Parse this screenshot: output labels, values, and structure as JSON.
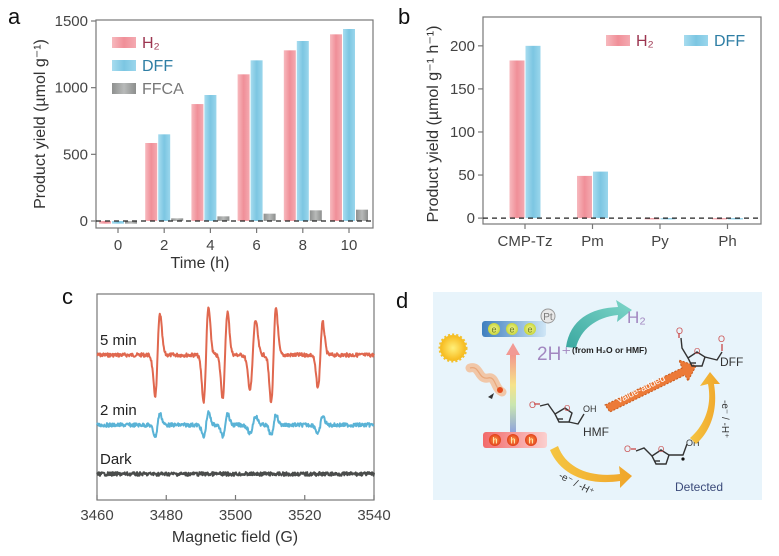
{
  "figure": {
    "panels": [
      "a",
      "b",
      "c",
      "d"
    ],
    "colors": {
      "h2": "#f2a0a8",
      "dff": "#8fd0e8",
      "ffca": "#a2a4a3",
      "trace_5min": "#e0684f",
      "trace_2min": "#5ab3d6",
      "trace_dark": "#4a4c4b",
      "scheme_bg": "#e8f4fb"
    }
  },
  "chart_data": [
    {
      "panel": "a",
      "type": "bar",
      "title": "",
      "xlabel": "Time (h)",
      "ylabel": "Product yield (µmol g⁻¹)",
      "categories": [
        "0",
        "2",
        "4",
        "6",
        "8",
        "10"
      ],
      "ylim": [
        -60,
        1500
      ],
      "yticks": [
        0,
        500,
        1000,
        1500
      ],
      "legend_position": "top-left",
      "reference_line": {
        "y": 0,
        "style": "dashed"
      },
      "series": [
        {
          "name": "H₂",
          "key": "h2",
          "values": [
            -20,
            585,
            877,
            1100,
            1280,
            1400
          ]
        },
        {
          "name": "DFF",
          "key": "dff",
          "values": [
            -20,
            650,
            945,
            1205,
            1350,
            1440
          ]
        },
        {
          "name": "FFCA",
          "key": "ffca",
          "values": [
            -20,
            20,
            35,
            55,
            80,
            85
          ]
        }
      ]
    },
    {
      "panel": "b",
      "type": "bar",
      "title": "",
      "xlabel": "",
      "ylabel": "Product yield (µmol g⁻¹ h⁻¹)",
      "categories": [
        "CMP-Tz",
        "Pm",
        "Py",
        "Ph"
      ],
      "ylim": [
        -8,
        230
      ],
      "yticks": [
        0,
        50,
        100,
        150,
        200
      ],
      "legend_position": "top-right",
      "reference_line": {
        "y": 0,
        "style": "dashed"
      },
      "series": [
        {
          "name": "H₂",
          "key": "h2",
          "values": [
            183,
            49,
            -1.5,
            -1.5
          ]
        },
        {
          "name": "DFF",
          "key": "dff",
          "values": [
            200,
            54,
            -1.5,
            -1.5
          ]
        }
      ]
    },
    {
      "panel": "c",
      "type": "line",
      "title": "",
      "xlabel": "Magnetic field (G)",
      "ylabel": "",
      "xlim": [
        3460,
        3540
      ],
      "xticks": [
        3460,
        3480,
        3500,
        3520,
        3540
      ],
      "yticks": [],
      "series": [
        {
          "name": "5 min",
          "key": "trace_5min",
          "offset": 3,
          "lines": [
            {
              "center": 3477.5,
              "amp": 1.0,
              "width": 0.7
            },
            {
              "center": 3491.5,
              "amp": 1.15,
              "width": 0.7
            },
            {
              "center": 3497.0,
              "amp": 1.05,
              "width": 0.7
            },
            {
              "center": 3505.0,
              "amp": 0.85,
              "width": 0.8
            },
            {
              "center": 3511.0,
              "amp": 1.15,
              "width": 0.7
            },
            {
              "center": 3524.5,
              "amp": 0.8,
              "width": 0.7
            }
          ]
        },
        {
          "name": "2 min",
          "key": "trace_2min",
          "offset": 1.6,
          "lines": [
            {
              "center": 3477.5,
              "amp": 0.28,
              "width": 0.7
            },
            {
              "center": 3491.5,
              "amp": 0.3,
              "width": 0.7
            },
            {
              "center": 3497.0,
              "amp": 0.28,
              "width": 0.7
            },
            {
              "center": 3505.0,
              "amp": 0.22,
              "width": 0.8
            },
            {
              "center": 3511.0,
              "amp": 0.26,
              "width": 0.7
            },
            {
              "center": 3524.5,
              "amp": 0.22,
              "width": 0.7
            }
          ]
        },
        {
          "name": "Dark",
          "key": "trace_dark",
          "offset": 0.5,
          "lines": []
        }
      ]
    }
  ],
  "scheme": {
    "panel": "d",
    "electrons": [
      "e",
      "e",
      "e"
    ],
    "holes": [
      "h",
      "h",
      "h"
    ],
    "cocatalyst": "Pt",
    "proton_label": "2H⁺",
    "proton_source": "(from H₂O or HMF)",
    "product_h2": "H₂",
    "value_added_label": "Value-added",
    "hmf_label": "HMF",
    "dff_label": "DFF",
    "oh_label": "OH",
    "oh_label_radical": "OH",
    "oxygen": "O",
    "step_label_1": "-e⁻ / -H⁺",
    "step_label_2": "-e⁻ / -H⁺",
    "detected_label": "Detected"
  }
}
